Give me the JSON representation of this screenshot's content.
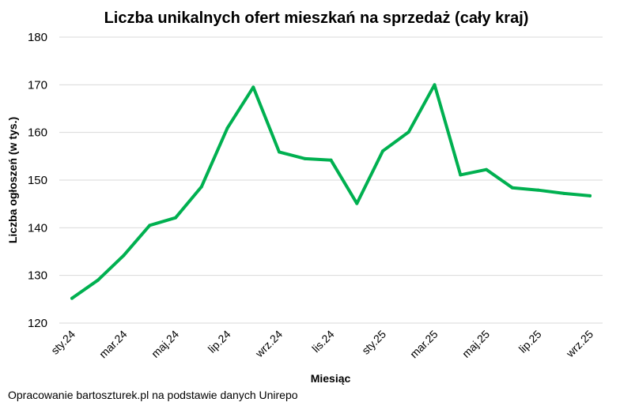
{
  "chart_data": {
    "type": "line",
    "title": "Liczba unikalnych ofert mieszkań na sprzedaż (cały kraj)",
    "xlabel": "Miesiąc",
    "ylabel": "Liczba ogłoszeń (w tys.)",
    "ylim": [
      120,
      180
    ],
    "yticks": [
      120,
      130,
      140,
      150,
      160,
      170,
      180
    ],
    "grid": true,
    "legend": "none",
    "series_color": "#00b050",
    "x": [
      "sty.24",
      "lut.24",
      "mar.24",
      "kwi.24",
      "maj.24",
      "cze.24",
      "lip.24",
      "sie.24",
      "wrz.24",
      "paź.24",
      "lis.24",
      "gru.24",
      "sty.25",
      "lut.25",
      "mar.25",
      "kwi.25",
      "maj.25",
      "cze.25",
      "lip.25",
      "sie.25",
      "wrz.25"
    ],
    "x_tick_labels": [
      "sty.24",
      "",
      "mar.24",
      "",
      "maj.24",
      "",
      "lip.24",
      "",
      "wrz.24",
      "",
      "lis.24",
      "",
      "sty.25",
      "",
      "mar.25",
      "",
      "maj.25",
      "",
      "lip.25",
      "",
      "wrz.25"
    ],
    "series": [
      {
        "values": [
          125.2,
          129.0,
          134.2,
          140.5,
          142.1,
          148.6,
          160.9,
          169.5,
          155.9,
          154.5,
          154.2,
          145.1,
          156.1,
          160.1,
          170.0,
          151.1,
          152.2,
          148.4,
          147.9,
          147.2,
          146.7
        ]
      }
    ]
  },
  "source_note": "Opracowanie bartoszturek.pl na podstawie danych Unirepo"
}
